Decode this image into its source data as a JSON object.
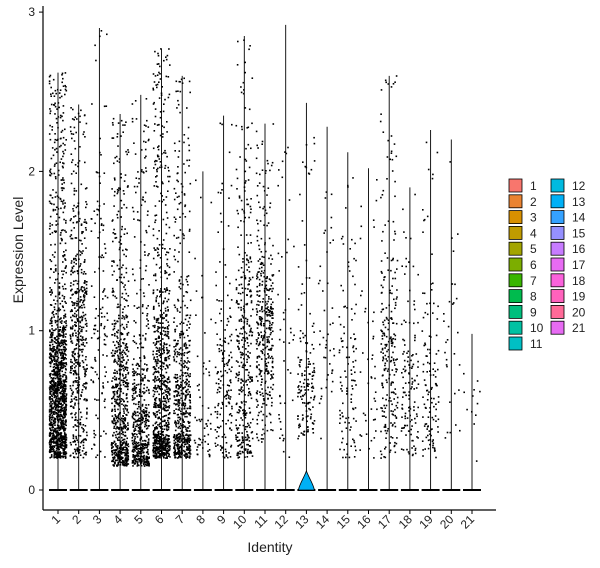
{
  "chart_data": {
    "type": "violin",
    "xlabel": "Identity",
    "ylabel": "Expression Level",
    "categories": [
      "1",
      "2",
      "3",
      "4",
      "5",
      "6",
      "7",
      "8",
      "9",
      "10",
      "11",
      "12",
      "13",
      "14",
      "15",
      "16",
      "17",
      "18",
      "19",
      "20",
      "21"
    ],
    "ylim": [
      -0.15,
      3.05
    ],
    "yticks": [
      0,
      1,
      2,
      3
    ],
    "grid": false,
    "legend_placement": "right",
    "legend_columns": 2,
    "colors": [
      "#F8766D",
      "#EA8331",
      "#D89000",
      "#C09B00",
      "#A3A500",
      "#7CAE00",
      "#39B600",
      "#00BB4E",
      "#00BF7D",
      "#00C1A3",
      "#00BFC4",
      "#00BAE0",
      "#00B0F6",
      "#35A2FF",
      "#9590FF",
      "#C77CFF",
      "#E76BF3",
      "#FA62DB",
      "#FF62BC",
      "#FF6A98",
      "#E76BF3"
    ],
    "groups": [
      {
        "name": "1",
        "max": 2.62,
        "dots": 1400,
        "low": 0.2,
        "high": 1.6,
        "peak": 0.55
      },
      {
        "name": "2",
        "max": 2.42,
        "dots": 520,
        "low": 0.2,
        "high": 2.3,
        "peak": 0.9
      },
      {
        "name": "3",
        "max": 2.9,
        "dots": 130,
        "low": 0.2,
        "high": 2.5,
        "peak": 1.0
      },
      {
        "name": "4",
        "max": 2.36,
        "dots": 700,
        "low": 0.15,
        "high": 2.0,
        "peak": 0.4
      },
      {
        "name": "5",
        "max": 2.48,
        "dots": 520,
        "low": 0.15,
        "high": 1.5,
        "peak": 0.35
      },
      {
        "name": "6",
        "max": 2.77,
        "dots": 850,
        "low": 0.2,
        "high": 2.2,
        "peak": 0.5
      },
      {
        "name": "7",
        "max": 2.6,
        "dots": 600,
        "low": 0.2,
        "high": 1.8,
        "peak": 0.45
      },
      {
        "name": "8",
        "max": 2.0,
        "dots": 60,
        "low": 0.2,
        "high": 1.8,
        "peak": 0.4
      },
      {
        "name": "9",
        "max": 2.35,
        "dots": 170,
        "low": 0.2,
        "high": 1.5,
        "peak": 0.6
      },
      {
        "name": "10",
        "max": 2.85,
        "dots": 380,
        "low": 0.2,
        "high": 2.2,
        "peak": 0.7
      },
      {
        "name": "11",
        "max": 2.3,
        "dots": 380,
        "low": 0.3,
        "high": 1.6,
        "peak": 1.0
      },
      {
        "name": "12",
        "max": 2.92,
        "dots": 45,
        "low": 0.2,
        "high": 2.3,
        "peak": 0.8
      },
      {
        "name": "13",
        "max": 2.43,
        "dots": 150,
        "low": 0.3,
        "high": 1.1,
        "peak": 0.6
      },
      {
        "name": "14",
        "max": 2.28,
        "dots": 45,
        "low": 0.3,
        "high": 2.2,
        "peak": 1.0
      },
      {
        "name": "15",
        "max": 2.12,
        "dots": 110,
        "low": 0.2,
        "high": 1.7,
        "peak": 0.6
      },
      {
        "name": "16",
        "max": 2.02,
        "dots": 45,
        "low": 0.2,
        "high": 1.8,
        "peak": 0.7
      },
      {
        "name": "17",
        "max": 2.6,
        "dots": 240,
        "low": 0.2,
        "high": 1.7,
        "peak": 0.8
      },
      {
        "name": "18",
        "max": 1.9,
        "dots": 130,
        "low": 0.2,
        "high": 1.4,
        "peak": 0.6
      },
      {
        "name": "19",
        "max": 2.26,
        "dots": 120,
        "low": 0.2,
        "high": 1.7,
        "peak": 0.6
      },
      {
        "name": "20",
        "max": 2.2,
        "dots": 30,
        "low": 0.3,
        "high": 2.2,
        "peak": 0.8
      },
      {
        "name": "21",
        "max": 0.98,
        "dots": 12,
        "low": 0.15,
        "high": 0.9,
        "peak": 0.4
      }
    ],
    "violin_bulge": {
      "group": "13",
      "color": "#00B0F6",
      "height": 0.12
    }
  }
}
